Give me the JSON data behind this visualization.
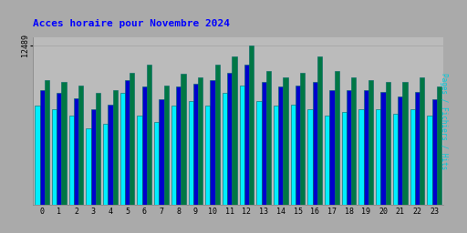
{
  "title": "Acces horaire pour Novembre 2024",
  "ylabel_right": "Pages / Fichiers / Hits",
  "ytick_label": "12489",
  "hours": [
    0,
    1,
    2,
    3,
    4,
    5,
    6,
    7,
    8,
    9,
    10,
    11,
    12,
    13,
    14,
    15,
    16,
    17,
    18,
    19,
    20,
    21,
    22,
    23
  ],
  "pages": [
    0.62,
    0.6,
    0.56,
    0.48,
    0.51,
    0.7,
    0.56,
    0.52,
    0.62,
    0.65,
    0.62,
    0.7,
    0.75,
    0.65,
    0.62,
    0.63,
    0.6,
    0.56,
    0.58,
    0.6,
    0.6,
    0.57,
    0.6,
    0.56
  ],
  "fichiers": [
    0.72,
    0.7,
    0.67,
    0.6,
    0.63,
    0.78,
    0.74,
    0.66,
    0.74,
    0.76,
    0.78,
    0.83,
    0.88,
    0.77,
    0.74,
    0.75,
    0.77,
    0.72,
    0.72,
    0.72,
    0.71,
    0.68,
    0.71,
    0.66
  ],
  "hits": [
    0.78,
    0.77,
    0.75,
    0.7,
    0.72,
    0.83,
    0.88,
    0.75,
    0.82,
    0.8,
    0.88,
    0.93,
    1.0,
    0.84,
    0.8,
    0.83,
    0.93,
    0.84,
    0.8,
    0.78,
    0.77,
    0.77,
    0.8,
    0.74
  ],
  "color_pages": "#00EEFF",
  "color_fichiers": "#0000CC",
  "color_hits": "#007744",
  "color_border": "#006666",
  "bg_color": "#AAAAAA",
  "plot_bg": "#BBBBBB",
  "title_color": "#0000FF",
  "title_fontsize": 8,
  "bar_width": 0.28,
  "ymax": 1.0,
  "ylabel_color": "#00CCDD"
}
